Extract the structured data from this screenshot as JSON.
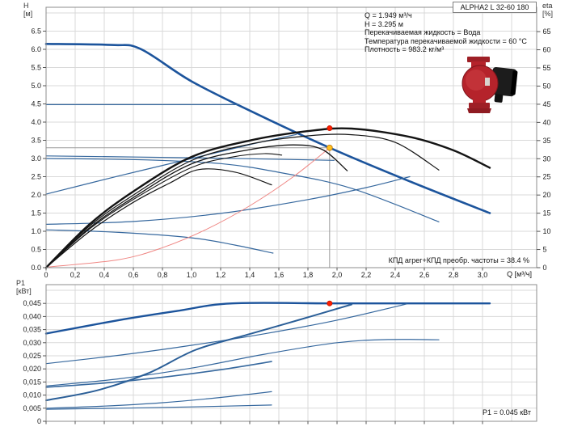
{
  "title_box": "ALPHA2 L 32-60 180",
  "axes": {
    "h_label": "H",
    "h_unit": "[м]",
    "eta_label": "eta",
    "eta_unit": "[%]",
    "p1_label": "P1",
    "p1_unit": "[кВт]",
    "q_label": "Q [м³/ч]"
  },
  "info_block": {
    "lines": [
      "Q = 1.949 м³/ч",
      "H = 3.295 м",
      "Перекачиваемая жидкость = Вода",
      "Температура перекачиваемой жидкости = 60 °C",
      "Плотность = 983.2 кг/м³"
    ]
  },
  "annotations": {
    "efficiency_note": "КПД агрег+КПД преобр. частоты = 38.4 %",
    "power_note": "P1 = 0.045 кВт"
  },
  "colors": {
    "blue_thick": "#1C549C",
    "blue_thin": "#36689E",
    "black_curve": "#141414",
    "system_curve_red": "#EF8683",
    "grid": "#D9D9D9",
    "frame": "#8C8C8C",
    "crosshair": "#9A9A9A",
    "marker_red": "#FF1E00",
    "marker_yellow": "#FFC21E",
    "pump_red": "#B5232B"
  },
  "chart_data": [
    {
      "type": "line",
      "title": "Pump performance curves (H and eta vs Q)",
      "xlabel": "Q [м³/ч]",
      "ylabel": "H [м]",
      "y2label": "eta [%]",
      "xlim": [
        0,
        3.37
      ],
      "ylim": [
        0,
        7.16
      ],
      "y2lim": [
        0,
        71.7
      ],
      "grid": true,
      "legend": false,
      "duty_point": {
        "q": 1.949,
        "h": 3.295,
        "eta_total_pct": 38.4
      },
      "x_ticks": [
        {
          "v": 0,
          "t": "0"
        },
        {
          "v": 0.2,
          "t": "0,2"
        },
        {
          "v": 0.4,
          "t": "0,4"
        },
        {
          "v": 0.6,
          "t": "0,6"
        },
        {
          "v": 0.8,
          "t": "0,8"
        },
        {
          "v": 1,
          "t": "1,0"
        },
        {
          "v": 1.2,
          "t": "1,2"
        },
        {
          "v": 1.4,
          "t": "1,4"
        },
        {
          "v": 1.6,
          "t": "1,6"
        },
        {
          "v": 1.8,
          "t": "1,8"
        },
        {
          "v": 2,
          "t": "2,0"
        },
        {
          "v": 2.2,
          "t": "2,2"
        },
        {
          "v": 2.4,
          "t": "2,4"
        },
        {
          "v": 2.6,
          "t": "2,6"
        },
        {
          "v": 2.8,
          "t": "2,8"
        },
        {
          "v": 3,
          "t": "3,0"
        }
      ],
      "y_ticks": [
        {
          "v": 0,
          "t": "0.0"
        },
        {
          "v": 0.5,
          "t": "0.5"
        },
        {
          "v": 1,
          "t": "1.0"
        },
        {
          "v": 1.5,
          "t": "1.5"
        },
        {
          "v": 2,
          "t": "2.0"
        },
        {
          "v": 2.5,
          "t": "2.5"
        },
        {
          "v": 3,
          "t": "3.0"
        },
        {
          "v": 3.5,
          "t": "3.5"
        },
        {
          "v": 4,
          "t": "4.0"
        },
        {
          "v": 4.5,
          "t": "4.5"
        },
        {
          "v": 5,
          "t": "5.0"
        },
        {
          "v": 5.5,
          "t": "5.5"
        },
        {
          "v": 6,
          "t": "6.0"
        },
        {
          "v": 6.5,
          "t": "6.5"
        }
      ],
      "y2_ticks": [
        {
          "v": 0,
          "t": "0"
        },
        {
          "v": 5,
          "t": "5"
        },
        {
          "v": 10,
          "t": "10"
        },
        {
          "v": 15,
          "t": "15"
        },
        {
          "v": 20,
          "t": "20"
        },
        {
          "v": 25,
          "t": "25"
        },
        {
          "v": 30,
          "t": "30"
        },
        {
          "v": 35,
          "t": "35"
        },
        {
          "v": 40,
          "t": "40"
        },
        {
          "v": 45,
          "t": "45"
        },
        {
          "v": 50,
          "t": "50"
        },
        {
          "v": 55,
          "t": "55"
        },
        {
          "v": 60,
          "t": "60"
        },
        {
          "v": 65,
          "t": "65"
        }
      ],
      "series": [
        {
          "name": "pump-curve-speed-max",
          "axis": "h",
          "color": "#1C549C",
          "w": 2.6,
          "points": [
            [
              0,
              6.15
            ],
            [
              0.45,
              6.12
            ],
            [
              0.65,
              6.01
            ],
            [
              1.0,
              5.12
            ],
            [
              1.45,
              4.22
            ],
            [
              1.949,
              3.295
            ],
            [
              2.5,
              2.37
            ],
            [
              3.05,
              1.5
            ]
          ]
        },
        {
          "name": "control-curve-const-pressure-high",
          "axis": "h",
          "color": "#36689E",
          "w": 1.2,
          "points": [
            [
              0,
              4.48
            ],
            [
              1.32,
              4.48
            ]
          ]
        },
        {
          "name": "control-curve-const-pressure-mid",
          "axis": "h",
          "color": "#36689E",
          "w": 1.2,
          "points": [
            [
              0,
              3.07
            ],
            [
              1.0,
              3.02
            ],
            [
              1.98,
              2.95
            ]
          ]
        },
        {
          "name": "pump-curve-speed-2",
          "axis": "h",
          "color": "#36689E",
          "w": 1.2,
          "points": [
            [
              0,
              3.0
            ],
            [
              0.7,
              2.96
            ],
            [
              1.2,
              2.86
            ],
            [
              1.6,
              2.62
            ],
            [
              2.1,
              2.18
            ],
            [
              2.7,
              1.26
            ]
          ]
        },
        {
          "name": "pump-curve-speed-1",
          "axis": "h",
          "color": "#36689E",
          "w": 1.2,
          "points": [
            [
              0,
              1.04
            ],
            [
              0.5,
              0.97
            ],
            [
              1.0,
              0.82
            ],
            [
              1.3,
              0.62
            ],
            [
              1.56,
              0.4
            ]
          ]
        },
        {
          "name": "control-curve-prop-pressure-high",
          "axis": "h",
          "color": "#36689E",
          "w": 1.2,
          "points": [
            [
              0,
              2.02
            ],
            [
              0.5,
              2.52
            ],
            [
              1.0,
              3.0
            ],
            [
              1.4,
              3.38
            ],
            [
              1.72,
              3.66
            ]
          ]
        },
        {
          "name": "control-curve-prop-pressure-low",
          "axis": "h",
          "color": "#36689E",
          "w": 1.2,
          "points": [
            [
              0,
              1.19
            ],
            [
              0.6,
              1.27
            ],
            [
              1.2,
              1.49
            ],
            [
              1.8,
              1.87
            ],
            [
              2.2,
              2.2
            ],
            [
              2.5,
              2.5
            ]
          ]
        },
        {
          "name": "system-curve",
          "axis": "h",
          "color": "#EF8683",
          "w": 1,
          "points": [
            [
              0.02,
              0.02
            ],
            [
              0.5,
              0.22
            ],
            [
              0.8,
              0.55
            ],
            [
              1.1,
              1.05
            ],
            [
              1.4,
              1.7
            ],
            [
              1.7,
              2.5
            ],
            [
              1.949,
              3.295
            ]
          ]
        },
        {
          "name": "eta-curve-max",
          "axis": "eta",
          "color": "#141414",
          "w": 2.4,
          "points": [
            [
              0,
              0
            ],
            [
              0.3,
              12
            ],
            [
              0.6,
              21
            ],
            [
              1.0,
              30.5
            ],
            [
              1.4,
              35
            ],
            [
              1.8,
              37.6
            ],
            [
              2.1,
              38.3
            ],
            [
              2.5,
              36
            ],
            [
              2.8,
              32.3
            ],
            [
              3.05,
              27.5
            ]
          ]
        },
        {
          "name": "eta-curve-2",
          "axis": "eta",
          "color": "#141414",
          "w": 1.2,
          "points": [
            [
              0,
              0
            ],
            [
              0.3,
              11.5
            ],
            [
              0.6,
              20
            ],
            [
              1.0,
              29.5
            ],
            [
              1.4,
              34
            ],
            [
              1.8,
              36.3
            ],
            [
              2.1,
              36.6
            ],
            [
              2.4,
              34.5
            ],
            [
              2.7,
              26.9
            ]
          ]
        },
        {
          "name": "eta-curve-3",
          "axis": "eta",
          "color": "#141414",
          "w": 1.3,
          "points": [
            [
              0,
              0
            ],
            [
              0.3,
              11
            ],
            [
              0.6,
              19.3
            ],
            [
              1.0,
              28.6
            ],
            [
              1.4,
              32.5
            ],
            [
              1.7,
              33.8
            ],
            [
              1.9,
              32.5
            ],
            [
              2.07,
              26.7
            ]
          ]
        },
        {
          "name": "eta-curve-4",
          "axis": "eta",
          "color": "#141414",
          "w": 1.2,
          "points": [
            [
              0,
              0
            ],
            [
              0.3,
              10
            ],
            [
              0.6,
              18
            ],
            [
              0.85,
              23.3
            ],
            [
              1.05,
              27
            ],
            [
              1.3,
              26.3
            ],
            [
              1.55,
              22.8
            ]
          ]
        },
        {
          "name": "eta-curve-5",
          "axis": "eta",
          "color": "#141414",
          "w": 1.1,
          "points": [
            [
              0,
              0
            ],
            [
              0.3,
              10.7
            ],
            [
              0.6,
              18.8
            ],
            [
              1.0,
              27.6
            ],
            [
              1.3,
              30.6
            ],
            [
              1.5,
              31.4
            ],
            [
              1.62,
              31
            ]
          ]
        }
      ],
      "markers": [
        {
          "name": "duty-point-marker",
          "q": 1.949,
          "axis": "h",
          "val": 3.295,
          "r": 3.4,
          "fill": "#FFC21E",
          "stroke": "#C8831B"
        },
        {
          "name": "efficiency-point-marker",
          "q": 1.949,
          "axis": "eta",
          "val": 38.4,
          "r": 3,
          "fill": "#FF1E00",
          "stroke": "#CC1800"
        }
      ],
      "crosshair": {
        "q": 1.949,
        "h": 3.295
      }
    },
    {
      "type": "line",
      "title": "Power consumption P1 vs Q",
      "xlabel": "Q [м³/ч]",
      "ylabel": "P1 [кВт]",
      "xlim": [
        0,
        3.37
      ],
      "ylim": [
        0,
        0.0521
      ],
      "grid": true,
      "legend": false,
      "duty_point": {
        "q": 1.949,
        "p1_kw": 0.045
      },
      "y_ticks": [
        {
          "v": 0,
          "t": "0"
        },
        {
          "v": 0.005,
          "t": "0,005"
        },
        {
          "v": 0.01,
          "t": "0,010"
        },
        {
          "v": 0.015,
          "t": "0,015"
        },
        {
          "v": 0.02,
          "t": "0,020"
        },
        {
          "v": 0.025,
          "t": "0,025"
        },
        {
          "v": 0.03,
          "t": "0,030"
        },
        {
          "v": 0.035,
          "t": "0,035"
        },
        {
          "v": 0.04,
          "t": "0,040"
        },
        {
          "v": 0.045,
          "t": "0,045"
        }
      ],
      "series": [
        {
          "name": "power-curve-speed-max",
          "color": "#1C549C",
          "w": 2.4,
          "points": [
            [
              0,
              0.0335
            ],
            [
              0.5,
              0.0386
            ],
            [
              0.9,
              0.0421
            ],
            [
              1.28,
              0.045
            ],
            [
              2.0,
              0.045
            ],
            [
              3.05,
              0.045
            ]
          ]
        },
        {
          "name": "power-curve-const-pressure-high",
          "color": "#36689E",
          "w": 1.2,
          "points": [
            [
              0,
              0.022
            ],
            [
              0.5,
              0.0252
            ],
            [
              1.0,
              0.029
            ],
            [
              1.5,
              0.0334
            ],
            [
              2.0,
              0.0386
            ],
            [
              2.48,
              0.0448
            ]
          ]
        },
        {
          "name": "power-curve-const-pressure-mid",
          "color": "#36689E",
          "w": 1.2,
          "points": [
            [
              0,
              0.0135
            ],
            [
              0.5,
              0.0162
            ],
            [
              1.0,
              0.0203
            ],
            [
              1.5,
              0.0256
            ],
            [
              2.0,
              0.03
            ],
            [
              2.35,
              0.0312
            ],
            [
              2.7,
              0.0311
            ]
          ]
        },
        {
          "name": "power-curve-prop-pressure-high",
          "color": "#2A5E97",
          "w": 2,
          "points": [
            [
              0,
              0.008
            ],
            [
              0.35,
              0.0118
            ],
            [
              0.7,
              0.0183
            ],
            [
              1.03,
              0.0273
            ],
            [
              1.4,
              0.0333
            ],
            [
              1.75,
              0.0389
            ],
            [
              2.1,
              0.0446
            ]
          ]
        },
        {
          "name": "power-curve-speed-2",
          "color": "#36689E",
          "w": 1.6,
          "points": [
            [
              0,
              0.013
            ],
            [
              0.4,
              0.0146
            ],
            [
              0.8,
              0.0168
            ],
            [
              1.2,
              0.0197
            ],
            [
              1.55,
              0.0228
            ]
          ]
        },
        {
          "name": "power-curve-speed-1",
          "color": "#36689E",
          "w": 1.2,
          "points": [
            [
              0,
              0.005
            ],
            [
              0.4,
              0.0058
            ],
            [
              0.8,
              0.0071
            ],
            [
              1.2,
              0.0091
            ],
            [
              1.55,
              0.0113
            ]
          ]
        },
        {
          "name": "power-curve-prop-pressure-low",
          "color": "#36689E",
          "w": 1.2,
          "points": [
            [
              0,
              0.0046
            ],
            [
              0.5,
              0.005
            ],
            [
              1.0,
              0.0055
            ],
            [
              1.55,
              0.0062
            ]
          ]
        }
      ],
      "markers": [
        {
          "name": "power-point-marker",
          "q": 1.949,
          "val": 0.045,
          "r": 3,
          "fill": "#FF1E00",
          "stroke": "#CC1800"
        }
      ]
    }
  ]
}
